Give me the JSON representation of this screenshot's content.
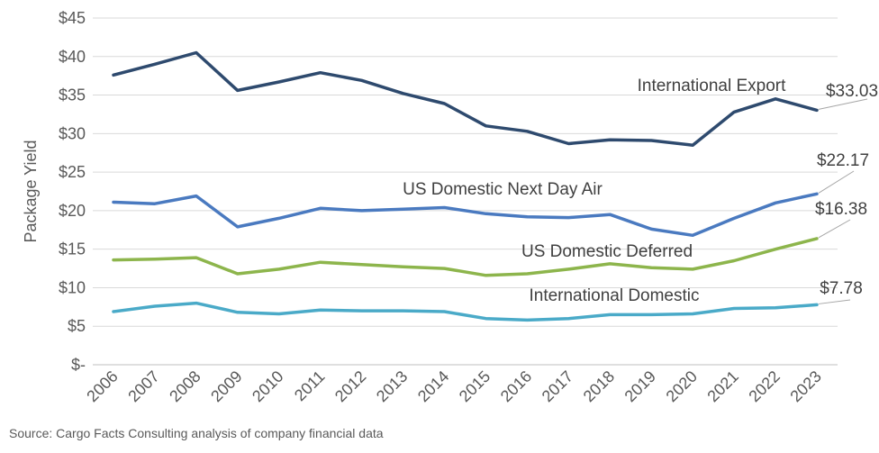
{
  "chart_data": {
    "type": "line",
    "ylabel": "Package Yield",
    "ylim": [
      0,
      45
    ],
    "yticks": [
      0,
      5,
      10,
      15,
      20,
      25,
      30,
      35,
      40,
      45
    ],
    "ytick_labels": [
      "$-",
      "$5",
      "$10",
      "$15",
      "$20",
      "$25",
      "$30",
      "$35",
      "$40",
      "$45"
    ],
    "categories": [
      "2006",
      "2007",
      "2008",
      "2009",
      "2010",
      "2011",
      "2012",
      "2013",
      "2014",
      "2015",
      "2016",
      "2017",
      "2018",
      "2019",
      "2020",
      "2021",
      "2022",
      "2023"
    ],
    "grid": true,
    "series": [
      {
        "name": "International Export",
        "color": "#2e4a6e",
        "end_label": "$33.03",
        "values": [
          37.6,
          39.0,
          40.5,
          35.6,
          36.7,
          37.9,
          36.9,
          35.2,
          33.9,
          31.0,
          30.3,
          28.7,
          29.2,
          29.1,
          28.5,
          32.8,
          34.5,
          33.03
        ]
      },
      {
        "name": "US Domestic Next Day Air",
        "color": "#4a7ac0",
        "end_label": "$22.17",
        "values": [
          21.1,
          20.9,
          21.9,
          17.9,
          19.0,
          20.3,
          20.0,
          20.2,
          20.4,
          19.6,
          19.2,
          19.1,
          19.5,
          17.6,
          16.8,
          19.0,
          21.0,
          22.17
        ]
      },
      {
        "name": "US Domestic Deferred",
        "color": "#8db54c",
        "end_label": "$16.38",
        "values": [
          13.6,
          13.7,
          13.9,
          11.8,
          12.4,
          13.3,
          13.0,
          12.7,
          12.5,
          11.6,
          11.8,
          12.4,
          13.1,
          12.6,
          12.4,
          13.5,
          15.0,
          16.38
        ]
      },
      {
        "name": "International Domestic",
        "color": "#4aaac8",
        "end_label": "$7.78",
        "values": [
          6.9,
          7.6,
          8.0,
          6.8,
          6.6,
          7.1,
          7.0,
          7.0,
          6.9,
          6.0,
          5.8,
          6.0,
          6.5,
          6.5,
          6.6,
          7.3,
          7.4,
          7.78
        ]
      }
    ]
  },
  "source": "Source: Cargo Facts Consulting analysis of company financial data"
}
